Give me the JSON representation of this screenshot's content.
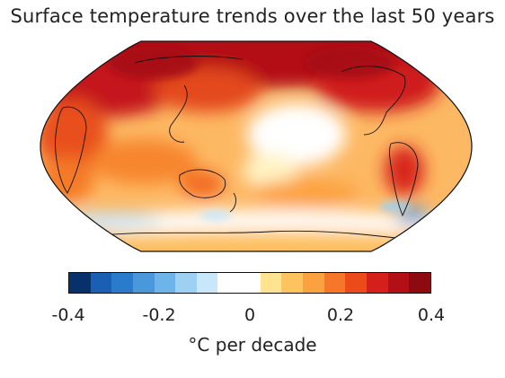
{
  "title": "Surface temperature trends over the last 50 years",
  "map": {
    "projection": "Robinson",
    "central_meridian": "Pacific-centered",
    "fill_shows": "temperature trend",
    "colors": {
      "strong_warming": "#a50f15",
      "warming": "#f16913",
      "mild_warming": "#fdb863",
      "neutral": "#ffffff",
      "cooling": "#92c5de",
      "strong_cooling": "#2166ac"
    }
  },
  "colorbar": {
    "colors": [
      "#08306b",
      "#1a5fb4",
      "#2b7bcc",
      "#4a98db",
      "#6cb4ea",
      "#9ed0f3",
      "#c9e7fa",
      "#ffffff",
      "#ffffff",
      "#fee391",
      "#fdc35e",
      "#fca140",
      "#f7772a",
      "#ed4a1a",
      "#d41f1b",
      "#b30f16",
      "#8c0a10"
    ],
    "ticks": [
      "-0.4",
      "-0.2",
      "0",
      "0.2",
      "0.4"
    ],
    "tick_values": [
      -0.4,
      -0.2,
      0,
      0.2,
      0.4
    ],
    "range": [
      -0.4,
      0.4
    ],
    "unit_label": "°C per decade"
  }
}
